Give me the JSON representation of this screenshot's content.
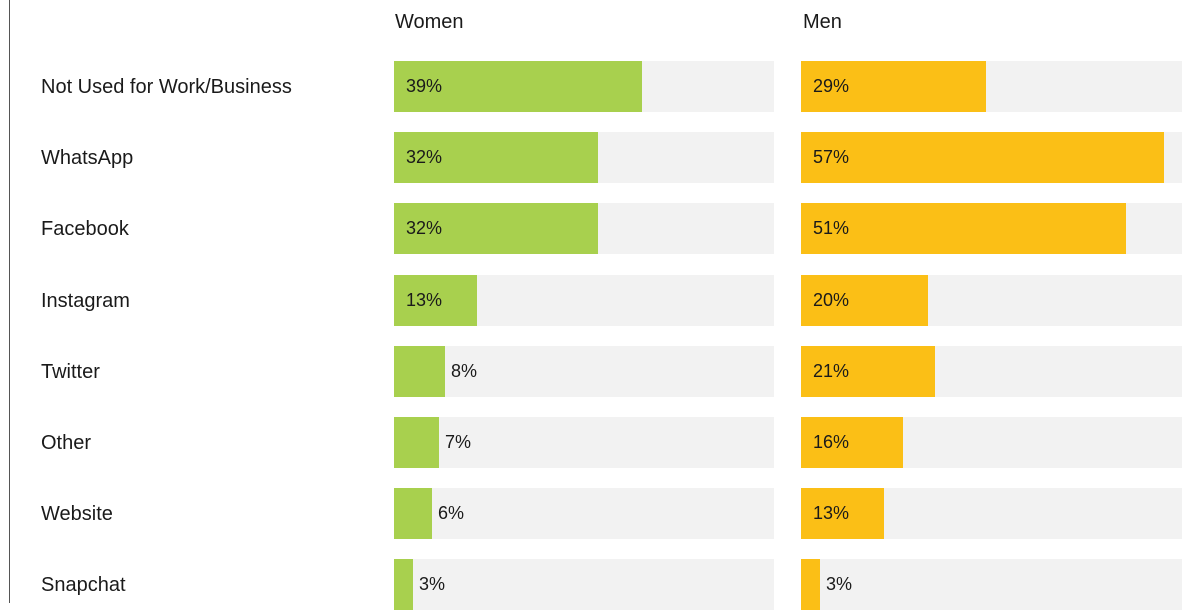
{
  "chart_data": {
    "type": "bar",
    "orientation": "horizontal",
    "categories": [
      "Not Used for Work/Business",
      "WhatsApp",
      "Facebook",
      "Instagram",
      "Twitter",
      "Other",
      "Website",
      "Snapchat"
    ],
    "series": [
      {
        "name": "Women",
        "values": [
          39,
          32,
          32,
          13,
          8,
          7,
          6,
          3
        ],
        "color": "#a8d04e"
      },
      {
        "name": "Men",
        "values": [
          29,
          57,
          51,
          20,
          21,
          16,
          13,
          3
        ],
        "color": "#fbbf16"
      }
    ],
    "value_suffix": "%",
    "xlim": [
      0,
      60
    ],
    "grid": false,
    "track_color": "#f2f2f2"
  }
}
